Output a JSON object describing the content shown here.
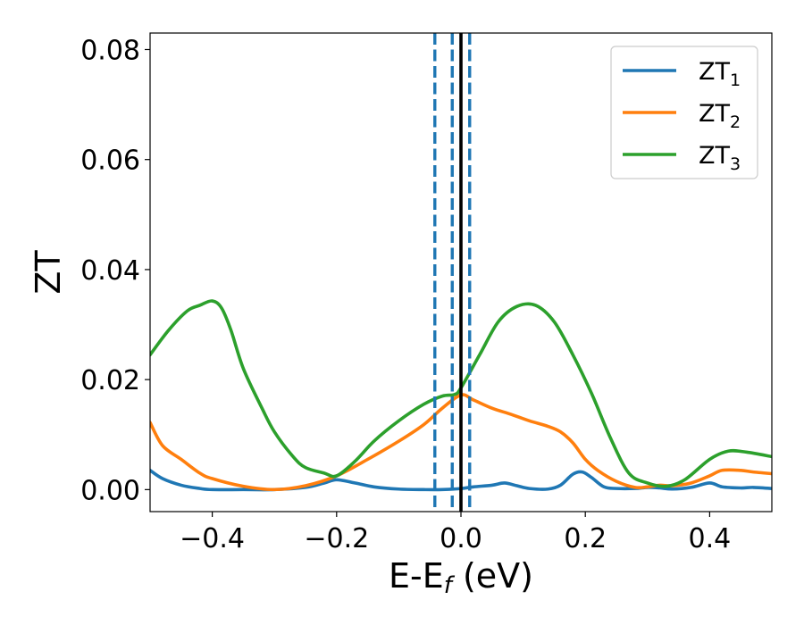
{
  "chart_data": {
    "type": "line",
    "xlabel_main": "E-E",
    "xlabel_sub": "f",
    "xlabel_unit": " (eV)",
    "ylabel": "ZT",
    "xlim": [
      -0.5,
      0.5
    ],
    "ylim": [
      -0.004,
      0.083
    ],
    "xticks": [
      -0.4,
      -0.2,
      0.0,
      0.2,
      0.4
    ],
    "xtick_labels": [
      "−0.4",
      "−0.2",
      "0.0",
      "0.2",
      "0.4"
    ],
    "yticks": [
      0.0,
      0.02,
      0.04,
      0.06,
      0.08
    ],
    "ytick_labels": [
      "0.00",
      "0.02",
      "0.04",
      "0.06",
      "0.08"
    ],
    "grid": false,
    "legend_position": "top-right",
    "series": [
      {
        "name": "ZT",
        "name_sub": "1",
        "color": "#1f77b4",
        "x": [
          -0.5,
          -0.48,
          -0.45,
          -0.42,
          -0.4,
          -0.35,
          -0.3,
          -0.25,
          -0.22,
          -0.2,
          -0.17,
          -0.14,
          -0.1,
          -0.06,
          -0.03,
          0.0,
          0.02,
          0.05,
          0.07,
          0.09,
          0.11,
          0.14,
          0.16,
          0.18,
          0.195,
          0.21,
          0.23,
          0.25,
          0.28,
          0.3,
          0.32,
          0.34,
          0.37,
          0.4,
          0.42,
          0.45,
          0.47,
          0.5
        ],
        "y": [
          0.0035,
          0.002,
          0.0008,
          0.0002,
          0.0,
          0.0,
          0.0,
          0.0004,
          0.0012,
          0.0018,
          0.0012,
          0.0005,
          0.0001,
          0.0,
          0.0,
          0.0002,
          0.0005,
          0.0008,
          0.0012,
          0.0007,
          0.0002,
          0.0001,
          0.0008,
          0.0028,
          0.0032,
          0.0022,
          0.0005,
          0.0002,
          0.0002,
          0.0004,
          0.0003,
          0.0001,
          0.0004,
          0.0012,
          0.0005,
          0.0003,
          0.0004,
          0.0002
        ]
      },
      {
        "name": "ZT",
        "name_sub": "2",
        "color": "#ff7f0e",
        "x": [
          -0.5,
          -0.48,
          -0.45,
          -0.42,
          -0.4,
          -0.35,
          -0.3,
          -0.25,
          -0.2,
          -0.15,
          -0.1,
          -0.06,
          -0.03,
          0.0,
          0.02,
          0.05,
          0.08,
          0.11,
          0.14,
          0.16,
          0.18,
          0.2,
          0.22,
          0.25,
          0.28,
          0.3,
          0.32,
          0.34,
          0.37,
          0.4,
          0.42,
          0.45,
          0.47,
          0.5
        ],
        "y": [
          0.0122,
          0.008,
          0.0055,
          0.003,
          0.002,
          0.0006,
          0.0,
          0.0007,
          0.0025,
          0.0055,
          0.0088,
          0.0118,
          0.0148,
          0.0172,
          0.0163,
          0.0148,
          0.0137,
          0.0125,
          0.0115,
          0.0105,
          0.0085,
          0.0055,
          0.0035,
          0.0015,
          0.0004,
          0.0005,
          0.0008,
          0.0007,
          0.0012,
          0.0025,
          0.0035,
          0.0035,
          0.0032,
          0.0029
        ]
      },
      {
        "name": "ZT",
        "name_sub": "3",
        "color": "#2ca02c",
        "x": [
          -0.5,
          -0.47,
          -0.44,
          -0.42,
          -0.4,
          -0.385,
          -0.37,
          -0.35,
          -0.32,
          -0.3,
          -0.27,
          -0.25,
          -0.22,
          -0.2,
          -0.17,
          -0.14,
          -0.1,
          -0.06,
          -0.03,
          -0.01,
          0.0,
          0.03,
          0.06,
          0.09,
          0.12,
          0.15,
          0.18,
          0.21,
          0.24,
          0.27,
          0.3,
          0.33,
          0.36,
          0.4,
          0.43,
          0.46,
          0.5
        ],
        "y": [
          0.0245,
          0.029,
          0.0325,
          0.0335,
          0.0343,
          0.033,
          0.029,
          0.022,
          0.0148,
          0.0105,
          0.006,
          0.004,
          0.003,
          0.0025,
          0.0052,
          0.0088,
          0.0125,
          0.0155,
          0.017,
          0.0173,
          0.0185,
          0.0245,
          0.0305,
          0.0333,
          0.0335,
          0.0305,
          0.0245,
          0.0175,
          0.0095,
          0.003,
          0.0012,
          0.0006,
          0.0018,
          0.0055,
          0.007,
          0.0068,
          0.006
        ]
      }
    ],
    "vlines": [
      {
        "x": -0.042,
        "style": "dashed",
        "color": "#1f77b4"
      },
      {
        "x": -0.014,
        "style": "dashed",
        "color": "#1f77b4"
      },
      {
        "x": 0.014,
        "style": "dashed",
        "color": "#1f77b4"
      },
      {
        "x": 0.0,
        "style": "solid",
        "color": "#000000"
      }
    ]
  }
}
